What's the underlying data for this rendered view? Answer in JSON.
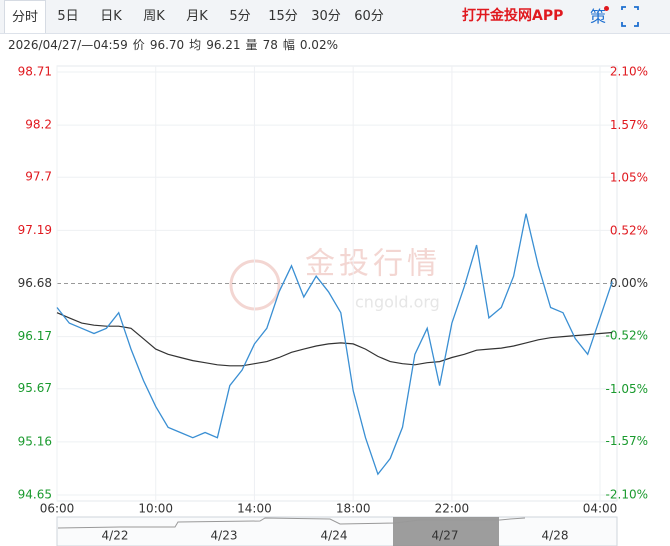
{
  "toolbar": {
    "tabs": [
      "分时",
      "5日",
      "日K",
      "周K",
      "月K",
      "5分",
      "15分",
      "30分",
      "60分"
    ],
    "app_link": "打开金投网APP",
    "strategy": "策"
  },
  "info": [
    "2026/04/27/—04:59",
    "价",
    "96.70",
    "均",
    "96.21",
    "量",
    "78",
    "幅",
    "0.02%"
  ],
  "watermark": {
    "brand": "金投行情",
    "site": "cngold.org"
  },
  "navigator": {
    "dates": [
      "4/22",
      "4/23",
      "4/24",
      "4/27",
      "4/28"
    ]
  },
  "chart_data": {
    "type": "line",
    "categories": [
      "06:00",
      null,
      null,
      null,
      null,
      null,
      null,
      null,
      "10:00",
      null,
      null,
      null,
      null,
      null,
      null,
      null,
      "14:00",
      null,
      null,
      null,
      null,
      null,
      null,
      null,
      "18:00",
      null,
      null,
      null,
      null,
      null,
      null,
      null,
      "22:00",
      null,
      null,
      null,
      null,
      null,
      null,
      null,
      null,
      null,
      null,
      null,
      "04:00",
      null
    ],
    "series": [
      {
        "name": "价",
        "color": "#3a8fd3",
        "values": [
          96.45,
          96.3,
          96.25,
          96.2,
          96.25,
          96.4,
          96.05,
          95.75,
          95.5,
          95.3,
          95.25,
          95.2,
          95.25,
          95.2,
          95.7,
          95.85,
          96.1,
          96.25,
          96.6,
          96.85,
          96.55,
          96.75,
          96.6,
          96.4,
          95.65,
          95.2,
          94.85,
          95.0,
          95.3,
          96.0,
          96.25,
          95.7,
          96.3,
          96.65,
          97.05,
          96.35,
          96.45,
          96.75,
          97.35,
          96.85,
          96.45,
          96.4,
          96.15,
          96.0,
          96.35,
          96.7
        ]
      },
      {
        "name": "均",
        "color": "#333333",
        "values": [
          96.4,
          96.35,
          96.3,
          96.28,
          96.27,
          96.27,
          96.25,
          96.15,
          96.05,
          96.0,
          95.97,
          95.94,
          95.92,
          95.9,
          95.89,
          95.89,
          95.91,
          95.93,
          95.97,
          96.02,
          96.05,
          96.08,
          96.1,
          96.11,
          96.1,
          96.05,
          95.98,
          95.93,
          95.91,
          95.9,
          95.92,
          95.93,
          95.97,
          96.0,
          96.04,
          96.05,
          96.06,
          96.08,
          96.11,
          96.14,
          96.16,
          96.17,
          96.18,
          96.19,
          96.2,
          96.21
        ]
      }
    ],
    "ylim": [
      94.65,
      98.71
    ],
    "yticks": [
      98.71,
      98.2,
      97.7,
      97.19,
      96.68,
      96.17,
      95.67,
      95.16,
      94.65
    ],
    "y2lim": [
      -2.1,
      2.1
    ],
    "y2ticks": [
      {
        "value": 2.1,
        "label": "2.10%"
      },
      {
        "value": 1.57,
        "label": "1.57%"
      },
      {
        "value": 1.05,
        "label": "1.05%"
      },
      {
        "value": 0.52,
        "label": "0.52%"
      },
      {
        "value": 0,
        "label": "0.00%"
      },
      {
        "value": -0.52,
        "label": "-0.52%"
      },
      {
        "value": -1.05,
        "label": "-1.05%"
      },
      {
        "value": -1.57,
        "label": "-1.57%"
      },
      {
        "value": -2.1,
        "label": "-2.10%"
      }
    ],
    "baseline": 96.68,
    "up_color": "#e0191f",
    "down_color": "#1a9a2e",
    "grid": true
  }
}
